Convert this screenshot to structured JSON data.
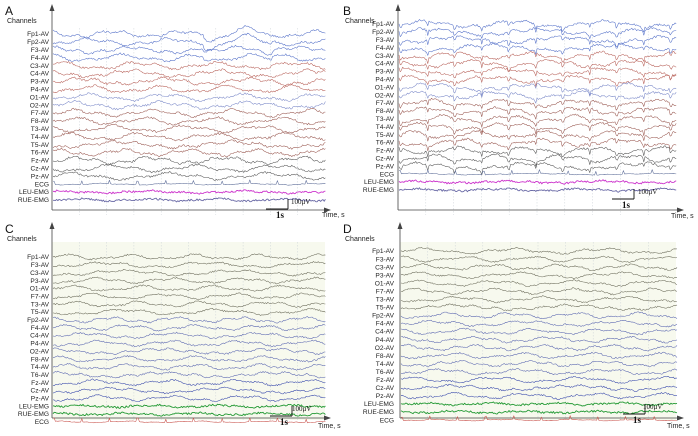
{
  "panels": [
    {
      "letter": "A",
      "channels_header": "Channels",
      "time_label": "Time, s",
      "scale_voltage": "100μV",
      "scale_time": "1s",
      "channels": [
        "Fp1-AV",
        "Fp2-AV",
        "F3-AV",
        "F4-AV",
        "C3-AV",
        "C4-AV",
        "P3-AV",
        "P4-AV",
        "O1-AV",
        "O2-AV",
        "F7-AV",
        "F8-AV",
        "T3-AV",
        "T4-AV",
        "T5-AV",
        "T6-AV",
        "Fz-AV",
        "Cz-AV",
        "Pz-AV",
        "ECG",
        "LEU-EMG",
        "RUE-EMG"
      ]
    },
    {
      "letter": "B",
      "channels_header": "Channels",
      "time_label": "Time, s",
      "scale_voltage": "100μV",
      "scale_time": "1s",
      "channels": [
        "Fp1-AV",
        "Fp2-AV",
        "F3-AV",
        "F4-AV",
        "C3-AV",
        "C4-AV",
        "P3-AV",
        "P4-AV",
        "O1-AV",
        "O2-AV",
        "F7-AV",
        "F8-AV",
        "T3-AV",
        "T4-AV",
        "T5-AV",
        "T6-AV",
        "Fz-AV",
        "Cz-AV",
        "Pz-AV",
        "ECG",
        "LEU-EMG",
        "RUE-EMG"
      ]
    },
    {
      "letter": "C",
      "channels_header": "Channels",
      "time_label": "Time, s",
      "scale_voltage": "100μV",
      "scale_time": "1s",
      "channels": [
        "Fp1-AV",
        "F3-AV",
        "C3-AV",
        "P3-AV",
        "O1-AV",
        "F7-AV",
        "T3-AV",
        "T5-AV",
        "Fp2-AV",
        "F4-AV",
        "C4-AV",
        "P4-AV",
        "O2-AV",
        "F8-AV",
        "T4-AV",
        "T6-AV",
        "Fz-AV",
        "Cz-AV",
        "Pz-AV",
        "LEU-EMG",
        "RUE-EMG",
        "ECG"
      ]
    },
    {
      "letter": "D",
      "channels_header": "Channels",
      "time_label": "Time, s",
      "scale_voltage": "100μV",
      "scale_time": "1s",
      "channels": [
        "Fp1-AV",
        "F3-AV",
        "C3-AV",
        "P3-AV",
        "O1-AV",
        "F7-AV",
        "T3-AV",
        "T5-AV",
        "Fp2-AV",
        "F4-AV",
        "C4-AV",
        "P4-AV",
        "O2-AV",
        "F8-AV",
        "T4-AV",
        "T6-AV",
        "Fz-AV",
        "Cz-AV",
        "Pz-AV",
        "LEU-EMG",
        "RUE-EMG",
        "ECG"
      ]
    }
  ]
}
